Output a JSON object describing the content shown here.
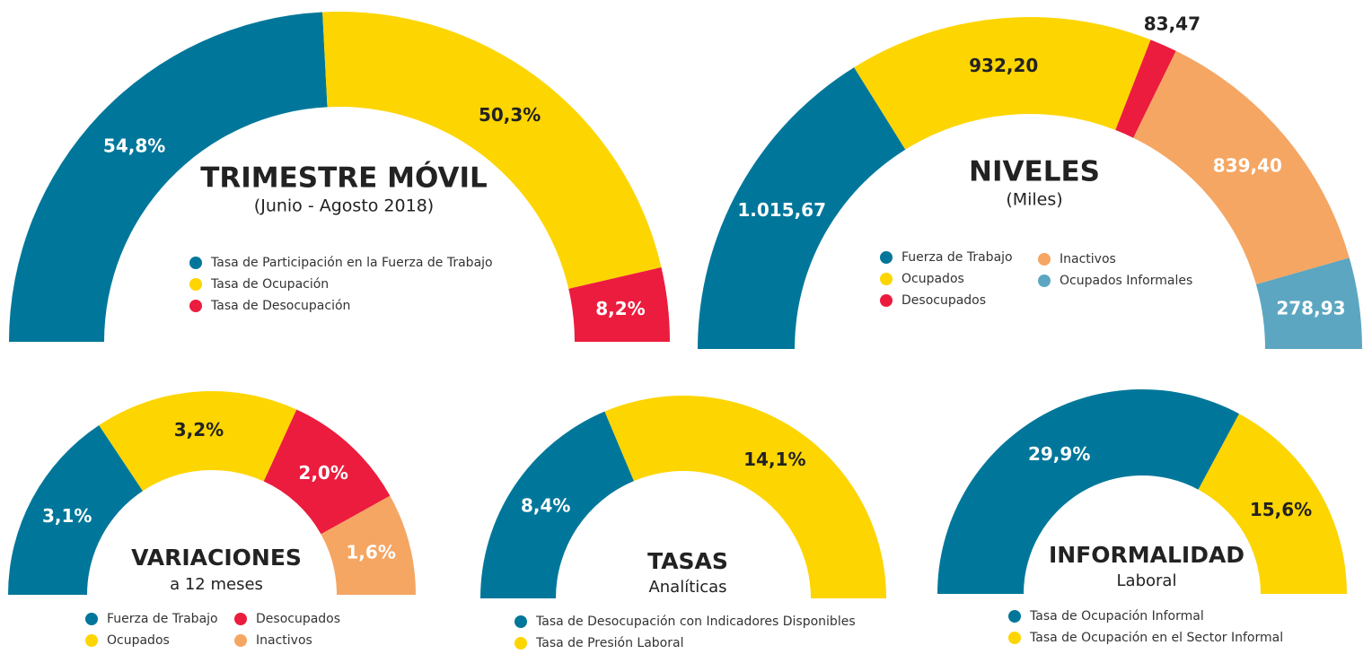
{
  "chart_data": [
    {
      "type": "pie",
      "title": "TRIMESTRE MÓVIL",
      "subtitle": "(Junio - Agosto 2018)",
      "categories": [
        "Tasa de Participación en la Fuerza de Trabajo",
        "Tasa de Ocupación",
        "Tasa de Desocupación"
      ],
      "values": [
        54.8,
        50.3,
        8.2
      ],
      "value_labels": [
        "54,8%",
        "50,3%",
        "8,2%"
      ],
      "colors": [
        "#00779a",
        "#fdd500",
        "#ec1c3e"
      ]
    },
    {
      "type": "pie",
      "title": "NIVELES",
      "subtitle": "(Miles)",
      "categories": [
        "Fuerza de Trabajo",
        "Ocupados",
        "Desocupados",
        "Inactivos",
        "Ocupados Informales"
      ],
      "values": [
        1015.67,
        932.2,
        83.47,
        839.4,
        278.93
      ],
      "value_labels": [
        "1.015,67",
        "932,20",
        "83,47",
        "839,40",
        "278,93"
      ],
      "colors": [
        "#00779a",
        "#fdd500",
        "#ec1c3e",
        "#f5a663",
        "#5da6c1"
      ]
    },
    {
      "type": "pie",
      "title": "VARIACIONES",
      "subtitle": "a 12 meses",
      "categories": [
        "Fuerza de Trabajo",
        "Ocupados",
        "Desocupados",
        "Inactivos"
      ],
      "values": [
        3.1,
        3.2,
        2.0,
        1.6
      ],
      "value_labels": [
        "3,1%",
        "3,2%",
        "2,0%",
        "1,6%"
      ],
      "colors": [
        "#00779a",
        "#fdd500",
        "#ec1c3e",
        "#f5a663"
      ]
    },
    {
      "type": "pie",
      "title": "TASAS",
      "subtitle": "Analíticas",
      "categories": [
        "Tasa de Desocupación con Indicadores Disponibles",
        "Tasa de Presión Laboral"
      ],
      "values": [
        8.4,
        14.1
      ],
      "value_labels": [
        "8,4%",
        "14,1%"
      ],
      "colors": [
        "#00779a",
        "#fdd500"
      ]
    },
    {
      "type": "pie",
      "title": "INFORMALIDAD",
      "subtitle": "Laboral",
      "categories": [
        "Tasa de Ocupación Informal",
        "Tasa de Ocupación en el Sector Informal"
      ],
      "values": [
        29.9,
        15.6
      ],
      "value_labels": [
        "29,9%",
        "15,6%"
      ],
      "colors": [
        "#00779a",
        "#fdd500"
      ]
    }
  ]
}
